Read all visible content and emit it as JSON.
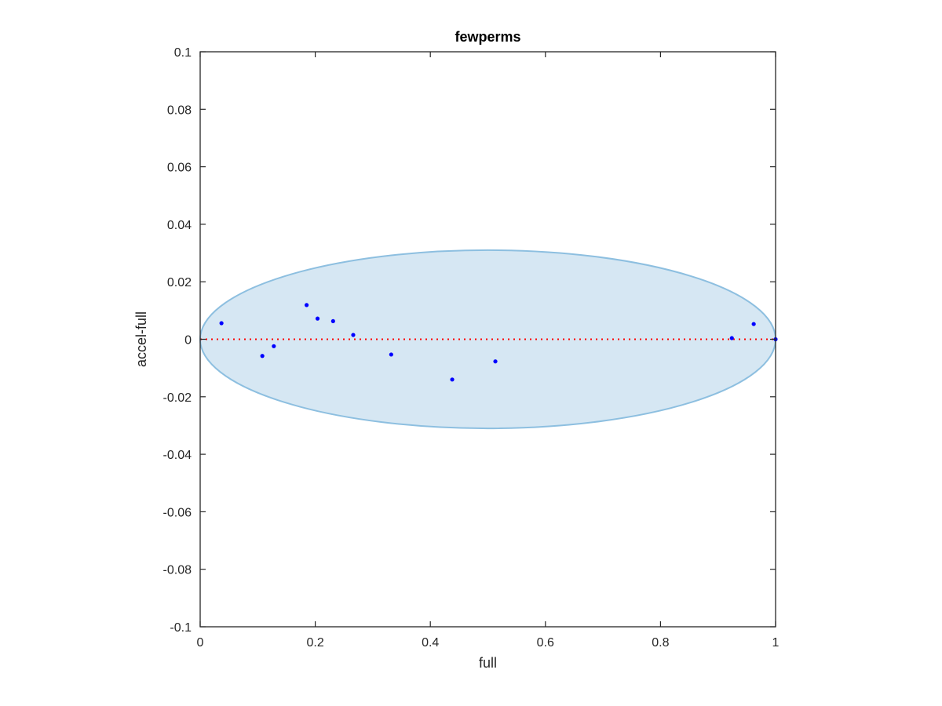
{
  "chart_data": {
    "type": "scatter",
    "title": "fewperms",
    "xlabel": "full",
    "ylabel": "accel-full",
    "xlim": [
      0,
      1
    ],
    "ylim": [
      -0.1,
      0.1
    ],
    "xticks": [
      0,
      0.2,
      0.4,
      0.6,
      0.8,
      1
    ],
    "xtick_labels": [
      "0",
      "0.2",
      "0.4",
      "0.6",
      "0.8",
      "1"
    ],
    "yticks": [
      0.1,
      0.08,
      0.06,
      0.04,
      0.02,
      0,
      -0.02,
      -0.04,
      -0.06,
      -0.08,
      -0.1
    ],
    "ytick_labels": [
      "0.1",
      "0.08",
      "0.06",
      "0.04",
      "0.02",
      "0",
      "-0.02",
      "-0.04",
      "-0.06",
      "-0.08",
      "-0.1"
    ],
    "grid": false,
    "series": [
      {
        "x": [
          0.037,
          0.108,
          0.128,
          0.185,
          0.204,
          0.231,
          0.266,
          0.332,
          0.438,
          0.513,
          0.924,
          0.962,
          1.0
        ],
        "y": [
          0.0056,
          -0.0058,
          -0.0024,
          0.0119,
          0.0072,
          0.0063,
          0.0015,
          -0.0053,
          -0.014,
          -0.0077,
          0.0004,
          0.0053,
          0.0
        ],
        "color": "#0000ff"
      }
    ],
    "ellipse": {
      "cx": 0.5,
      "cy": 0.0,
      "rx": 0.5,
      "ry": 0.031,
      "fill": "#d6e7f3",
      "stroke": "#8dbfe0"
    },
    "reference_line": {
      "y": 0,
      "color": "#ff0000",
      "style": "dotted"
    }
  }
}
